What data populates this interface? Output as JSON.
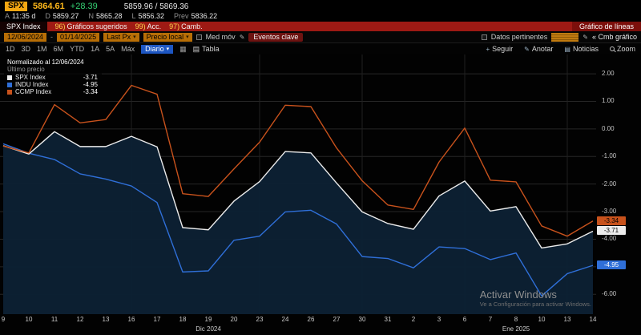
{
  "quotebar": {
    "ticker": "SPX",
    "price": "5864.61",
    "change": "+28.39",
    "range_hl": "5859.96 / 5869.36",
    "stats": [
      {
        "label": "A",
        "value": "11:35 d"
      },
      {
        "label": "D",
        "value": "5859.27"
      },
      {
        "label": "N",
        "value": "5865.28"
      },
      {
        "label": "L",
        "value": "5856.32"
      },
      {
        "label": "Prev",
        "value": "5836.22"
      }
    ]
  },
  "redbar": {
    "ticker": "SPX Index",
    "items": [
      {
        "num": "96)",
        "label": "Gráficos sugeridos"
      },
      {
        "num": "99)",
        "label": "Acc."
      },
      {
        "num": "97)",
        "label": "Camb."
      }
    ],
    "right": "Gráfico de líneas"
  },
  "toolbar": {
    "date_from": "12/06/2024",
    "date_sep": "-",
    "date_to": "01/14/2025",
    "field_select": "Last Px",
    "price_select": "Precio local",
    "mov_avg": "Med móv",
    "key_events": "Eventos clave",
    "related": "Datos pertinentes",
    "edit_chart": "« Cmb gráfico"
  },
  "rangebar": {
    "ranges": [
      "1D",
      "3D",
      "1M",
      "6M",
      "YTD",
      "1A",
      "5A",
      "Máx"
    ],
    "period": "Diario",
    "table": "Tabla",
    "actions": [
      "Seguir",
      "Anotar",
      "Noticias",
      "Zoom"
    ]
  },
  "chart_data": {
    "type": "line",
    "title": "Normalizado al 12/06/2024",
    "subtitle": "Último precio",
    "x": [
      "9",
      "10",
      "11",
      "12",
      "13",
      "16",
      "17",
      "18",
      "19",
      "20",
      "23",
      "24",
      "26",
      "27",
      "30",
      "31",
      "2",
      "3",
      "6",
      "7",
      "8",
      "10",
      "13",
      "14"
    ],
    "series": [
      {
        "name": "SPX Index",
        "last": "-3.71",
        "color": "#ececec",
        "badge_text": "#000000",
        "values": [
          -0.61,
          -0.91,
          -0.1,
          -0.64,
          -0.64,
          -0.27,
          -0.65,
          -3.58,
          -3.66,
          -2.62,
          -1.91,
          -0.82,
          -0.87,
          -1.96,
          -3.01,
          -3.43,
          -3.64,
          -2.43,
          -1.89,
          -2.98,
          -2.82,
          -4.32,
          -4.17,
          -3.71
        ]
      },
      {
        "name": "INDU Index",
        "last": "-4.95",
        "color": "#2f6fd8",
        "badge_text": "#ffffff",
        "values": [
          -0.54,
          -0.88,
          -1.11,
          -1.63,
          -1.82,
          -2.07,
          -2.67,
          -5.19,
          -5.15,
          -4.04,
          -3.89,
          -3.01,
          -2.95,
          -3.45,
          -4.63,
          -4.7,
          -5.04,
          -4.28,
          -4.34,
          -4.74,
          -4.5,
          -6.06,
          -5.25,
          -4.95
        ]
      },
      {
        "name": "CCMP Index",
        "last": "-3.34",
        "color": "#c8521c",
        "badge_text": "#000000",
        "values": [
          -0.62,
          -0.87,
          0.88,
          0.22,
          0.34,
          1.58,
          1.26,
          -2.35,
          -2.45,
          -1.45,
          -0.48,
          0.86,
          0.81,
          -0.69,
          -1.88,
          -2.76,
          -2.92,
          -1.2,
          0.03,
          -1.86,
          -1.92,
          -3.52,
          -3.89,
          -3.34
        ]
      }
    ],
    "fill_color": "#0c2033",
    "y_ticks": [
      2,
      1,
      0,
      -1,
      -2,
      -3,
      -4,
      -5,
      -6
    ],
    "ylim": [
      -6.72,
      2.7
    ],
    "v_grid_indices": [
      5,
      10,
      14,
      18,
      22
    ],
    "month_labels": [
      {
        "label": "Dic 2024",
        "index": 8
      },
      {
        "label": "Ene 2025",
        "index": 20
      }
    ],
    "grid": true,
    "legend_position": "top-left"
  },
  "watermark": {
    "line1": "Activar Windows",
    "line2": "Ve a Configuración para activar Windows."
  }
}
